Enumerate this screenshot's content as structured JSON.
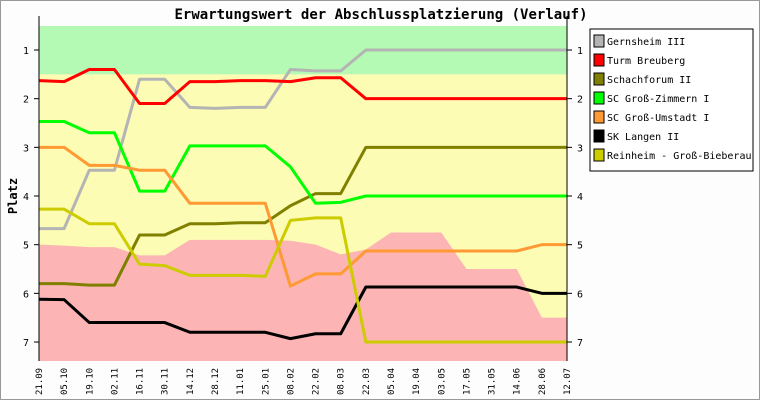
{
  "chart_data": {
    "type": "line",
    "title": "Erwartungswert der Abschlussplatzierung (Verlauf)",
    "ylabel": "Platz",
    "xlabel": "",
    "ylim": [
      0.5,
      7.4
    ],
    "y_inverted": true,
    "yticks": [
      1,
      2,
      3,
      4,
      5,
      6,
      7
    ],
    "categories": [
      "21.09",
      "05.10",
      "19.10",
      "02.11",
      "16.11",
      "30.11",
      "14.12",
      "28.12",
      "11.01",
      "25.01",
      "08.02",
      "22.02",
      "08.03",
      "22.03",
      "05.04",
      "19.04",
      "03.05",
      "17.05",
      "31.05",
      "14.06",
      "28.06",
      "12.07"
    ],
    "zones": [
      {
        "name": "promotion",
        "color": "#b4fab4",
        "from": 0.5,
        "to": [
          1.5,
          1.5,
          1.5,
          1.5,
          1.5,
          1.5,
          1.5,
          1.5,
          1.5,
          1.5,
          1.5,
          1.5,
          1.5,
          1.5,
          1.5,
          1.5,
          1.5,
          1.5,
          1.5,
          1.5,
          1.5,
          1.5
        ]
      },
      {
        "name": "middle",
        "color": "#fcfcb4"
      },
      {
        "name": "relegation",
        "color": "#fcb4b4",
        "top": [
          5,
          5.02,
          5.05,
          5.05,
          5.22,
          5.22,
          4.9,
          4.9,
          4.9,
          4.9,
          4.92,
          5.0,
          5.2,
          5.1,
          4.75,
          4.75,
          4.75,
          5.5,
          5.5,
          5.5,
          6.5,
          6.5
        ]
      }
    ],
    "legend_position": "right",
    "series": [
      {
        "name": "Gernsheim III",
        "color": "#b4b4b4",
        "values": [
          4.67,
          4.67,
          3.47,
          3.47,
          1.6,
          1.6,
          2.18,
          2.2,
          2.18,
          2.18,
          1.4,
          1.43,
          1.43,
          1,
          1,
          1,
          1,
          1,
          1,
          1,
          1,
          1
        ]
      },
      {
        "name": "Turm Breuberg",
        "color": "#ff0000",
        "values": [
          1.63,
          1.65,
          1.4,
          1.4,
          2.1,
          2.1,
          1.65,
          1.65,
          1.63,
          1.63,
          1.65,
          1.57,
          1.57,
          2,
          2,
          2,
          2,
          2,
          2,
          2,
          2,
          2
        ]
      },
      {
        "name": "Schachforum II",
        "color": "#808000",
        "values": [
          5.8,
          5.8,
          5.83,
          5.83,
          4.8,
          4.8,
          4.57,
          4.57,
          4.55,
          4.55,
          4.2,
          3.95,
          3.95,
          3,
          3,
          3,
          3,
          3,
          3,
          3,
          3,
          3
        ]
      },
      {
        "name": "SC Groß-Zimmern I",
        "color": "#00ff00",
        "values": [
          2.47,
          2.47,
          2.7,
          2.7,
          3.9,
          3.9,
          2.97,
          2.97,
          2.97,
          2.97,
          3.4,
          4.15,
          4.13,
          4,
          4,
          4,
          4,
          4,
          4,
          4,
          4,
          4
        ]
      },
      {
        "name": "SC Groß-Umstadt I",
        "color": "#ff9933",
        "values": [
          3,
          3,
          3.37,
          3.37,
          3.47,
          3.47,
          4.15,
          4.15,
          4.15,
          4.15,
          5.85,
          5.6,
          5.6,
          5.13,
          5.13,
          5.13,
          5.13,
          5.13,
          5.13,
          5.13,
          5,
          5
        ]
      },
      {
        "name": "SK Langen II",
        "color": "#000000",
        "values": [
          6.12,
          6.13,
          6.6,
          6.6,
          6.6,
          6.6,
          6.8,
          6.8,
          6.8,
          6.8,
          6.93,
          6.83,
          6.83,
          5.87,
          5.87,
          5.87,
          5.87,
          5.87,
          5.87,
          5.87,
          6,
          6
        ]
      },
      {
        "name": "Reinheim - Groß-Bieberau",
        "color": "#cccc00",
        "values": [
          4.27,
          4.27,
          4.57,
          4.57,
          5.4,
          5.43,
          5.63,
          5.63,
          5.63,
          5.65,
          4.5,
          4.45,
          4.45,
          7,
          7,
          7,
          7,
          7,
          7,
          7,
          7,
          7
        ]
      }
    ]
  }
}
